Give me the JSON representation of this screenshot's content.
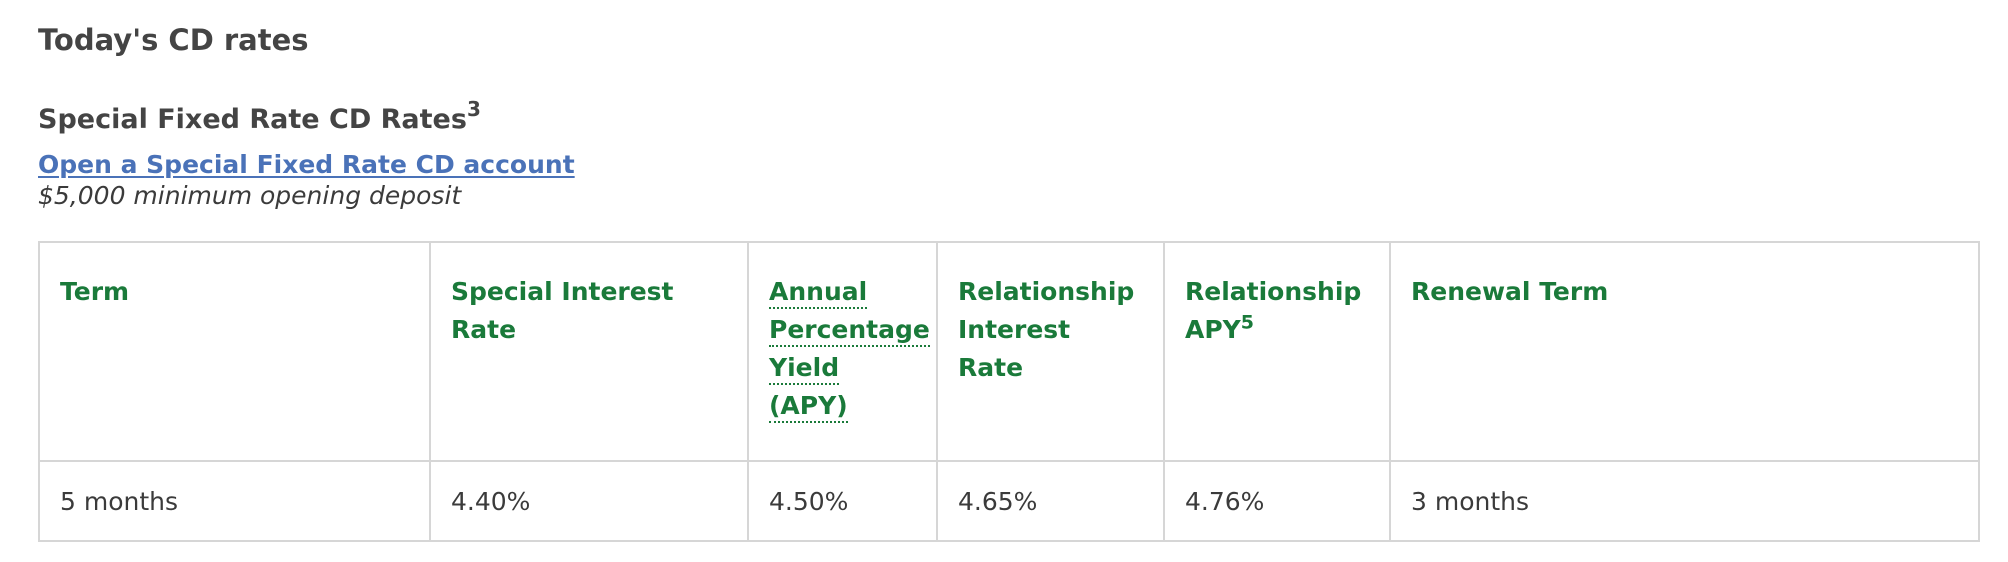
{
  "page": {
    "title": "Today's CD rates"
  },
  "section": {
    "title": "Special Fixed Rate CD Rates",
    "title_footnote": "3",
    "open_link": "Open a Special Fixed Rate CD account",
    "min_deposit": "$5,000 minimum opening deposit"
  },
  "table": {
    "headers": {
      "term": "Term",
      "special_rate": "Special Interest Rate",
      "apy_line1": "Annual",
      "apy_line2": "Percentage",
      "apy_line3": "Yield",
      "apy_line4": "(APY)",
      "relationship_rate": "Relationship Interest Rate",
      "relationship_apy": "Relationship APY",
      "relationship_apy_footnote": "5",
      "renewal_term": "Renewal Term"
    },
    "rows": [
      {
        "term": "5 months",
        "special_rate": "4.40%",
        "apy": "4.50%",
        "relationship_rate": "4.65%",
        "relationship_apy": "4.76%",
        "renewal_term": "3 months"
      }
    ]
  },
  "colors": {
    "header_green": "#1a7a3a",
    "link_blue": "#4a72b8",
    "border": "#d6d6d6",
    "text": "#3b3b3b"
  }
}
